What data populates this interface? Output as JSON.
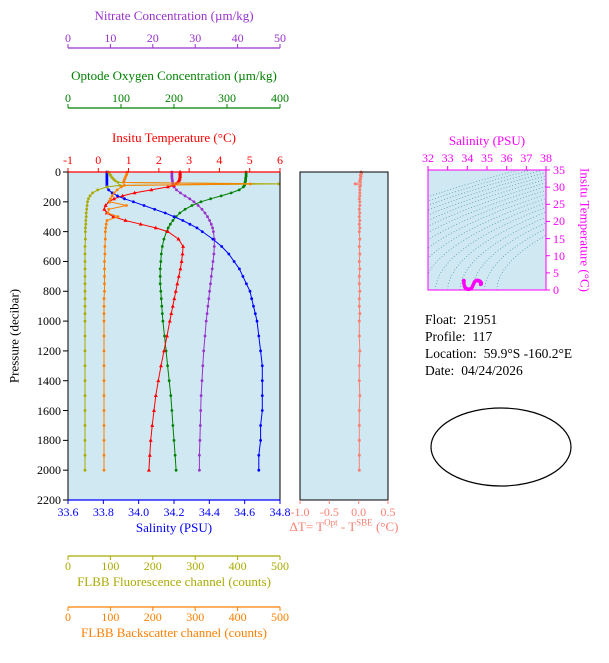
{
  "info": {
    "lines": [
      {
        "label": "Float:",
        "value": "21951"
      },
      {
        "label": "Profile:",
        "value": "117"
      },
      {
        "label": "Location:",
        "value": "59.9°S -160.2°E"
      },
      {
        "label": "Date:",
        "value": "04/24/2026"
      }
    ]
  },
  "map": {
    "land_color": "#f2a1a1",
    "ocean_color": "#ffffff",
    "outline_color": "#000000",
    "marker": "star",
    "marker_color": "#191970"
  },
  "chart_data": [
    {
      "id": "main-profile-plot",
      "type": "line",
      "ylabel": "Pressure (decibar)",
      "ylim": [
        0,
        2200
      ],
      "yticks": [
        0,
        200,
        400,
        600,
        800,
        1000,
        1200,
        1400,
        1600,
        1800,
        2000,
        2200
      ],
      "background": "#cfe8f2",
      "pressure": [
        0,
        10,
        20,
        30,
        40,
        50,
        60,
        70,
        80,
        90,
        100,
        120,
        140,
        160,
        180,
        200,
        225,
        250,
        275,
        300,
        325,
        350,
        375,
        400,
        450,
        500,
        550,
        600,
        650,
        700,
        750,
        800,
        850,
        900,
        950,
        1000,
        1100,
        1200,
        1300,
        1400,
        1500,
        1600,
        1700,
        1800,
        1900,
        2000
      ],
      "series": [
        {
          "name": "Nitrate Concentration (µm/kg)",
          "color": "#9932cc",
          "xlim": [
            0,
            50
          ],
          "xticks": [
            0,
            10,
            20,
            30,
            40,
            50
          ],
          "marker": "circle",
          "values": [
            24.5,
            24.5,
            24.5,
            24.5,
            24.5,
            24.6,
            24.6,
            24.7,
            24.7,
            24.8,
            25.0,
            25.6,
            26.5,
            27.6,
            28.7,
            29.7,
            30.7,
            31.6,
            32.3,
            32.9,
            33.4,
            33.8,
            34.1,
            34.3,
            34.5,
            34.5,
            34.4,
            34.2,
            34.0,
            33.8,
            33.6,
            33.4,
            33.2,
            33.0,
            32.8,
            32.6,
            32.3,
            32.0,
            31.8,
            31.6,
            31.4,
            31.3,
            31.2,
            31.1,
            31.0,
            31.0
          ]
        },
        {
          "name": "Optode Oxygen Concentration (µm/kg)",
          "color": "#008000",
          "xlim": [
            0,
            400
          ],
          "xticks": [
            0,
            100,
            200,
            300,
            400
          ],
          "marker": "circle",
          "values": [
            336,
            336,
            336,
            336,
            335,
            335,
            335,
            334,
            334,
            333,
            331,
            323,
            308,
            289,
            269,
            251,
            234,
            221,
            211,
            204,
            198,
            193,
            189,
            186,
            181,
            178,
            176,
            175,
            174,
            174,
            174,
            175,
            176,
            177,
            178,
            179,
            182,
            185,
            188,
            191,
            194,
            196,
            198,
            200,
            202,
            204
          ]
        },
        {
          "name": "Insitu Temperature (°C)",
          "color": "#ff0000",
          "xlim": [
            -1,
            6
          ],
          "xticks": [
            -1,
            0,
            1,
            2,
            3,
            4,
            5,
            6
          ],
          "marker": "triangle",
          "values": [
            2.7,
            2.7,
            2.7,
            2.7,
            2.69,
            2.68,
            2.66,
            2.62,
            2.57,
            2.5,
            2.3,
            1.75,
            1.2,
            0.8,
            0.52,
            0.35,
            0.24,
            0.2,
            0.28,
            0.5,
            0.9,
            1.4,
            1.9,
            2.3,
            2.65,
            2.8,
            2.78,
            2.75,
            2.71,
            2.66,
            2.61,
            2.56,
            2.51,
            2.46,
            2.41,
            2.36,
            2.27,
            2.17,
            2.07,
            1.98,
            1.9,
            1.84,
            1.78,
            1.73,
            1.7,
            1.67
          ]
        },
        {
          "name": "Salinity (PSU)",
          "color": "#0000ff",
          "xlim": [
            33.6,
            34.8
          ],
          "xticks": [
            "33.6",
            "33.8",
            "34.0",
            "34.2",
            "34.4",
            "34.6",
            "34.8"
          ],
          "marker": "circle",
          "values": [
            33.82,
            33.82,
            33.82,
            33.82,
            33.82,
            33.82,
            33.82,
            33.82,
            33.82,
            33.82,
            33.82,
            33.83,
            33.85,
            33.88,
            33.92,
            33.97,
            34.03,
            34.09,
            34.15,
            34.2,
            34.25,
            34.29,
            34.33,
            34.36,
            34.42,
            34.47,
            34.51,
            34.54,
            34.57,
            34.59,
            34.61,
            34.63,
            34.64,
            34.65,
            34.66,
            34.67,
            34.68,
            34.69,
            34.7,
            34.7,
            34.7,
            34.7,
            34.69,
            34.69,
            34.68,
            34.68
          ]
        },
        {
          "name": "FLBB Fluorescence channel (counts)",
          "color": "#aaaa00",
          "xlim": [
            0,
            500
          ],
          "xticks": [
            0,
            100,
            200,
            300,
            400,
            500
          ],
          "marker": "circle",
          "values": [
            95,
            97,
            100,
            102,
            105,
            108,
            112,
            118,
            497,
            122,
            92,
            70,
            58,
            52,
            48,
            46,
            45,
            44,
            43,
            43,
            42,
            42,
            41,
            41,
            41,
            40,
            40,
            40,
            40,
            40,
            40,
            40,
            40,
            40,
            40,
            40,
            40,
            40,
            40,
            40,
            40,
            40,
            40,
            40,
            40,
            40
          ]
        },
        {
          "name": "FLBB Backscatter channel (counts)",
          "color": "#ff7f00",
          "xlim": [
            0,
            500
          ],
          "xticks": [
            0,
            100,
            200,
            300,
            400,
            500
          ],
          "marker": "circle",
          "values": [
            140,
            139,
            138,
            136,
            135,
            133,
            132,
            131,
            430,
            133,
            126,
            116,
            109,
            104,
            100,
            98,
            138,
            96,
            94,
            118,
            92,
            90,
            89,
            88,
            88,
            87,
            87,
            86,
            86,
            86,
            86,
            86,
            85,
            85,
            85,
            85,
            85,
            85,
            85,
            85,
            85,
            85,
            85,
            85,
            85,
            85
          ]
        }
      ]
    },
    {
      "id": "temperature-difference-plot",
      "type": "line",
      "xlabel": "ΔT= TOpt - TSBE (°C)",
      "xlabel_parts": {
        "prefix": "ΔT= T",
        "sup1": "Opt",
        "mid": " - T",
        "sup2": "SBE",
        "suffix": " (°C)"
      },
      "xlim": [
        -1.0,
        0.5
      ],
      "xticks": [
        "-1.0",
        "-0.5",
        "0.0",
        "0.5"
      ],
      "ylim": [
        0,
        2200
      ],
      "color": "#fa8072",
      "pressure_ref": "main-profile-plot",
      "values": [
        0.04,
        0.05,
        0.03,
        0.04,
        0.03,
        0.03,
        0.02,
        0.03,
        -0.06,
        0.03,
        0.02,
        0.02,
        0.02,
        0.02,
        0.01,
        0.02,
        0.02,
        0.01,
        0.02,
        0.01,
        0.02,
        0.01,
        0.02,
        0.01,
        0.02,
        0.01,
        0.02,
        0.01,
        0.02,
        0.01,
        0.01,
        0.02,
        0.01,
        0.01,
        0.02,
        0.01,
        0.01,
        0.02,
        0.01,
        0.01,
        0.02,
        0.01,
        0.01,
        0.01,
        0.01,
        0.01
      ]
    },
    {
      "id": "ts-diagram",
      "type": "scatter",
      "xlabel": "Salinity (PSU)",
      "ylabel": "Insitu Temperature (°C)",
      "xlim": [
        32,
        38
      ],
      "xticks": [
        32,
        33,
        34,
        35,
        36,
        37,
        38
      ],
      "ylim": [
        0,
        35
      ],
      "yticks": [
        35,
        30,
        25,
        20,
        15,
        10,
        5,
        0
      ],
      "color": "#ff00ff",
      "isopycnals": {
        "min": 20,
        "max": 28.5,
        "step": 0.5,
        "color": "#4a98a8"
      },
      "salinity": [
        33.82,
        33.82,
        33.82,
        33.82,
        33.82,
        33.82,
        33.82,
        33.82,
        33.82,
        33.82,
        33.82,
        33.83,
        33.85,
        33.88,
        33.92,
        33.97,
        34.03,
        34.09,
        34.15,
        34.2,
        34.25,
        34.29,
        34.33,
        34.36,
        34.42,
        34.47,
        34.51,
        34.54,
        34.57,
        34.59,
        34.61,
        34.63,
        34.64,
        34.65,
        34.66,
        34.67,
        34.68,
        34.69,
        34.7,
        34.7,
        34.7,
        34.7,
        34.69,
        34.69,
        34.68,
        34.68
      ],
      "temperature": [
        2.7,
        2.7,
        2.7,
        2.7,
        2.69,
        2.68,
        2.66,
        2.62,
        2.57,
        2.5,
        2.3,
        1.75,
        1.2,
        0.8,
        0.52,
        0.35,
        0.24,
        0.2,
        0.28,
        0.5,
        0.9,
        1.4,
        1.9,
        2.3,
        2.65,
        2.8,
        2.78,
        2.75,
        2.71,
        2.66,
        2.61,
        2.56,
        2.51,
        2.46,
        2.41,
        2.36,
        2.27,
        2.17,
        2.07,
        1.98,
        1.9,
        1.84,
        1.78,
        1.73,
        1.7,
        1.67
      ]
    }
  ]
}
